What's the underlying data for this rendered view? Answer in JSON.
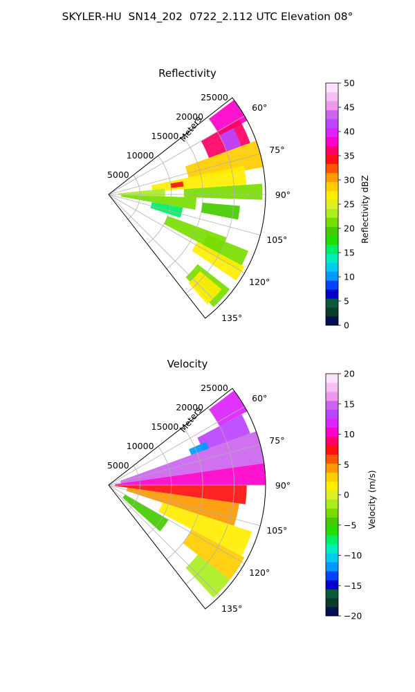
{
  "figure": {
    "title": "SKYLER-HU  SN14_202  0722_2.112 UTC Elevation 08°"
  },
  "chart_data": [
    {
      "type": "heatmap",
      "projection": "polar-sector",
      "title": "Reflectivity",
      "range_axis_label": "Meters",
      "range_ticks": [
        5000,
        10000,
        15000,
        20000,
        25000
      ],
      "range_tick_labels": [
        "5000",
        "10000",
        "15000",
        "20000",
        "25000"
      ],
      "range_max": 25000,
      "azimuth_limits": [
        52,
        142
      ],
      "azimuth_ticks": [
        60,
        75,
        90,
        105,
        120,
        135
      ],
      "azimuth_tick_labels": [
        "60°",
        "75°",
        "90°",
        "105°",
        "120°",
        "135°"
      ],
      "grid": true,
      "colorbar": {
        "label": "Reflectivity dBZ",
        "min": 0,
        "max": 50,
        "ticks": [
          0,
          5,
          10,
          15,
          20,
          25,
          30,
          35,
          40,
          45,
          50
        ],
        "tick_labels": [
          "0",
          "5",
          "10",
          "15",
          "20",
          "25",
          "30",
          "35",
          "40",
          "45",
          "50"
        ],
        "colors": [
          "#001050",
          "#073b2a",
          "#0a5a3a",
          "#0000cc",
          "#0044ff",
          "#0099ff",
          "#00ccee",
          "#00eebb",
          "#00ee66",
          "#22dd00",
          "#44cc00",
          "#77dd00",
          "#aaee22",
          "#ddee22",
          "#ffee00",
          "#ffcc00",
          "#ff9900",
          "#ff5500",
          "#ff1111",
          "#ff0066",
          "#ff00cc",
          "#dd22ff",
          "#bb44ff",
          "#cc66ee",
          "#ee99ee",
          "#f4c0f4",
          "#fde0fd"
        ]
      },
      "echo_regions": [
        {
          "az": [
            53,
            62
          ],
          "range": [
            20000,
            25000
          ],
          "value": 38
        },
        {
          "az": [
            60,
            70
          ],
          "range": [
            17000,
            24000
          ],
          "value": 36
        },
        {
          "az": [
            62,
            70
          ],
          "range": [
            20000,
            22500
          ],
          "value": 42
        },
        {
          "az": [
            70,
            80
          ],
          "range": [
            13000,
            25000
          ],
          "value": 28
        },
        {
          "az": [
            78,
            86
          ],
          "range": [
            7000,
            22000
          ],
          "value": 26
        },
        {
          "az": [
            80,
            84
          ],
          "range": [
            10000,
            12000
          ],
          "value": 34
        },
        {
          "az": [
            84,
            92
          ],
          "range": [
            1500,
            9000
          ],
          "value": 24
        },
        {
          "az": [
            86,
            92
          ],
          "range": [
            12000,
            24500
          ],
          "value": 22
        },
        {
          "az": [
            92,
            100
          ],
          "range": [
            2000,
            14000
          ],
          "value": 21
        },
        {
          "az": [
            95,
            101
          ],
          "range": [
            15000,
            21000
          ],
          "value": 20
        },
        {
          "az": [
            100,
            108
          ],
          "range": [
            7000,
            12000
          ],
          "value": 15
        },
        {
          "az": [
            110,
            118
          ],
          "range": [
            10000,
            20000
          ],
          "value": 22
        },
        {
          "az": [
            112,
            120
          ],
          "range": [
            17000,
            24000
          ],
          "value": 22
        },
        {
          "az": [
            118,
            124
          ],
          "range": [
            16000,
            24500
          ],
          "value": 27
        },
        {
          "az": [
            128,
            137
          ],
          "range": [
            18000,
            24500
          ],
          "value": 22
        },
        {
          "az": [
            130,
            138
          ],
          "range": [
            19000,
            23500
          ],
          "value": 27
        }
      ]
    },
    {
      "type": "heatmap",
      "projection": "polar-sector",
      "title": "Velocity",
      "range_axis_label": "Meters",
      "range_ticks": [
        5000,
        10000,
        15000,
        20000,
        25000
      ],
      "range_tick_labels": [
        "5000",
        "10000",
        "15000",
        "20000",
        "25000"
      ],
      "range_max": 25000,
      "azimuth_limits": [
        52,
        142
      ],
      "azimuth_ticks": [
        60,
        75,
        90,
        105,
        120,
        135
      ],
      "azimuth_tick_labels": [
        "60°",
        "75°",
        "90°",
        "105°",
        "120°",
        "135°"
      ],
      "grid": true,
      "colorbar": {
        "label": "Velocity (m/s)",
        "min": -20,
        "max": 20,
        "ticks": [
          -20,
          -15,
          -10,
          -5,
          0,
          5,
          10,
          15,
          20
        ],
        "tick_labels": [
          "−20",
          "−15",
          "−10",
          "−5",
          "0",
          "5",
          "10",
          "15",
          "20"
        ],
        "colors": [
          "#001050",
          "#073b2a",
          "#0a5a3a",
          "#0000cc",
          "#0044ff",
          "#0099ff",
          "#00ccee",
          "#00eebb",
          "#00ee66",
          "#22dd00",
          "#44cc00",
          "#77dd00",
          "#aaee22",
          "#ddee22",
          "#ffee00",
          "#ffcc00",
          "#ff9900",
          "#ff5500",
          "#ff1111",
          "#ff0066",
          "#ff00cc",
          "#dd22ff",
          "#bb44ff",
          "#cc66ee",
          "#ee99ee",
          "#f4c0f4",
          "#fde0fd"
        ]
      },
      "echo_regions": [
        {
          "az": [
            53,
            62
          ],
          "range": [
            20000,
            25000
          ],
          "value": 12
        },
        {
          "az": [
            62,
            70
          ],
          "range": [
            16000,
            24000
          ],
          "value": 14
        },
        {
          "az": [
            70,
            82
          ],
          "range": [
            2000,
            25000
          ],
          "value": 15
        },
        {
          "az": [
            66,
            70
          ],
          "range": [
            14000,
            17000
          ],
          "value": -12
        },
        {
          "az": [
            82,
            90
          ],
          "range": [
            1000,
            25000
          ],
          "value": 11
        },
        {
          "az": [
            90,
            98
          ],
          "range": [
            1000,
            22000
          ],
          "value": 8
        },
        {
          "az": [
            98,
            108
          ],
          "range": [
            3000,
            21000
          ],
          "value": 4
        },
        {
          "az": [
            108,
            118
          ],
          "range": [
            9000,
            24000
          ],
          "value": 2
        },
        {
          "az": [
            118,
            128
          ],
          "range": [
            15000,
            24500
          ],
          "value": 3
        },
        {
          "az": [
            128,
            137
          ],
          "range": [
            18000,
            24500
          ],
          "value": -1
        },
        {
          "az": [
            120,
            132
          ],
          "range": [
            3000,
            11000
          ],
          "value": -4
        }
      ]
    }
  ]
}
